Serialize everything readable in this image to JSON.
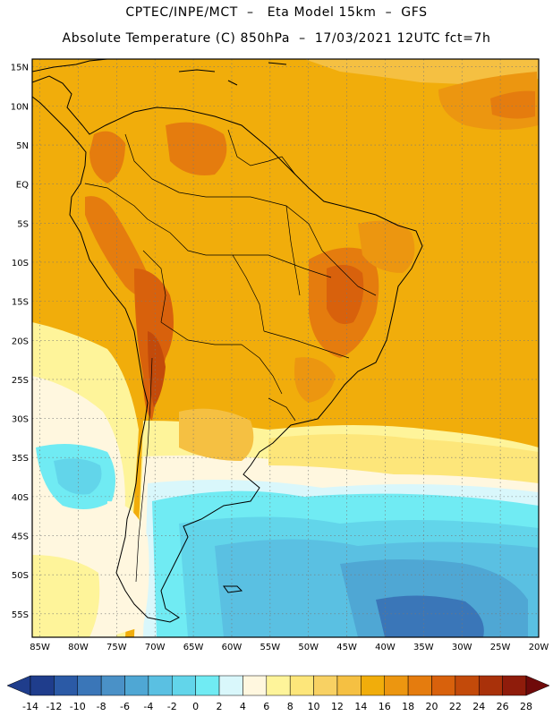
{
  "header": {
    "line1": "CPTEC/INPE/MCT  –   Eta Model 15km  –  GFS",
    "line2": "Absolute Temperature (C) 850hPa  –  17/03/2021 12UTC fct=7h"
  },
  "axes": {
    "lat_labels": [
      "15N",
      "10N",
      "5N",
      "EQ",
      "5S",
      "10S",
      "15S",
      "20S",
      "25S",
      "30S",
      "35S",
      "40S",
      "45S",
      "50S",
      "55S"
    ],
    "lon_labels": [
      "85W",
      "80W",
      "75W",
      "70W",
      "65W",
      "60W",
      "55W",
      "50W",
      "45W",
      "40W",
      "35W",
      "30W",
      "25W",
      "20W"
    ],
    "lat_range": [
      16,
      -58
    ],
    "lon_range": [
      -86,
      -20
    ]
  },
  "colorbar": {
    "labels": [
      "-14",
      "-12",
      "-10",
      "-8",
      "-6",
      "-4",
      "-2",
      "0",
      "2",
      "4",
      "6",
      "8",
      "10",
      "12",
      "14",
      "16",
      "18",
      "20",
      "22",
      "24",
      "26",
      "28"
    ],
    "colors": [
      "#1f3d8c",
      "#2b5aa6",
      "#3a76b8",
      "#4a91c7",
      "#4fa7d4",
      "#5ac0e2",
      "#62d5ea",
      "#70ebf3",
      "#d9f7fb",
      "#fff7df",
      "#fef49a",
      "#fde67a",
      "#f8d163",
      "#f5c042",
      "#f1ad0b",
      "#ec9610",
      "#e57c0e",
      "#d8610c",
      "#c34a0a",
      "#a9310a",
      "#8f1c0b",
      "#6f0a0a"
    ]
  },
  "colors": {
    "land_outline": "#000000",
    "grid": "#777777",
    "background": "#f1ad0b"
  }
}
